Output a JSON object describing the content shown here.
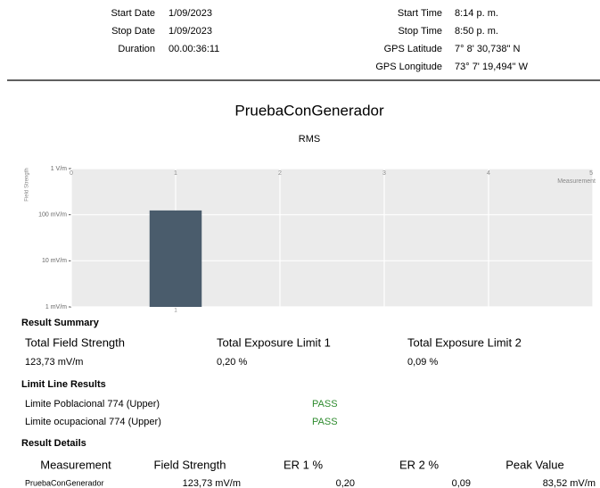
{
  "header": {
    "left": [
      {
        "label": "Start Date",
        "value": "1/09/2023"
      },
      {
        "label": "Stop Date",
        "value": "1/09/2023"
      },
      {
        "label": "Duration",
        "value": "00.00:36:11"
      }
    ],
    "right": [
      {
        "label": "Start Time",
        "value": "8:14 p. m."
      },
      {
        "label": "Stop Time",
        "value": "8:50 p. m."
      },
      {
        "label": "GPS Latitude",
        "value": "7° 8' 30,738\" N"
      },
      {
        "label": "GPS Longitude",
        "value": "73° 7' 19,494\" W"
      }
    ]
  },
  "chart_data": {
    "type": "bar",
    "title": "PruebaConGenerador",
    "subtitle": "RMS",
    "xlabel": "Measurement",
    "ylabel": "Field Strength",
    "x": [
      1
    ],
    "values": [
      123.73
    ],
    "color": "#4a5c6c",
    "xlim": [
      0,
      5
    ],
    "xticks": [
      0,
      1,
      2,
      3,
      4,
      5
    ],
    "ylim": [
      1,
      1000
    ],
    "log_scale_y": true,
    "grid": true,
    "yticks": [
      {
        "value": 1,
        "label": "1 mV/m"
      },
      {
        "value": 10,
        "label": "10 mV/m"
      },
      {
        "value": 100,
        "label": "100 mV/m"
      },
      {
        "value": 1000,
        "label": "1 V/m"
      }
    ]
  },
  "result_summary": {
    "heading": "Result Summary",
    "items": [
      {
        "label": "Total Field Strength",
        "value": "123,73 mV/m"
      },
      {
        "label": "Total Exposure Limit 1",
        "value": "0,20 %"
      },
      {
        "label": "Total Exposure Limit 2",
        "value": "0,09 %"
      }
    ]
  },
  "limit_line_results": {
    "heading": "Limit Line Results",
    "rows": [
      {
        "name": "Limite Poblacional 774 (Upper)",
        "status": "PASS"
      },
      {
        "name": "Limite ocupacional 774 (Upper)",
        "status": "PASS"
      }
    ]
  },
  "result_details": {
    "heading": "Result Details",
    "columns": [
      "Measurement",
      "Field Strength",
      "ER 1 %",
      "ER 2 %",
      "Peak Value"
    ],
    "rows": [
      [
        "PruebaConGenerador",
        "123,73 mV/m",
        "0,20",
        "0,09",
        "83,52 mV/m"
      ]
    ]
  }
}
